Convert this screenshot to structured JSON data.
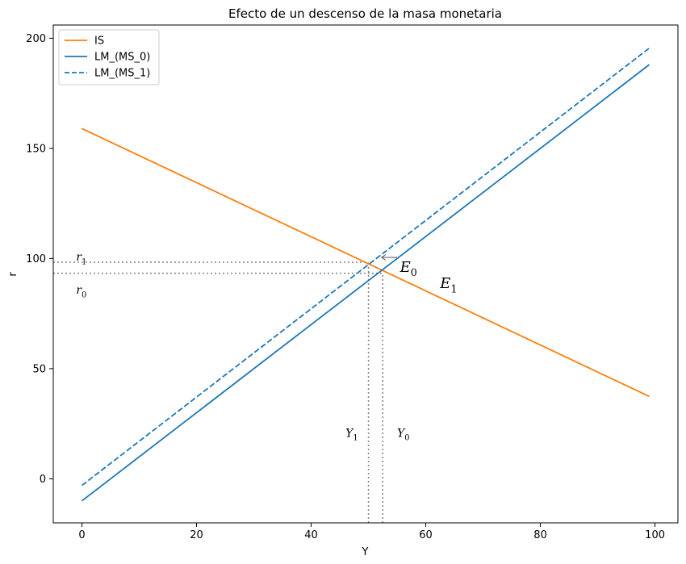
{
  "chart_data": {
    "type": "line",
    "title": "Efecto de un descenso de la masa monetaria",
    "xlabel": "Y",
    "ylabel": "r",
    "xlim": [
      -5,
      104
    ],
    "ylim": [
      -20,
      206
    ],
    "xticks": [
      0,
      20,
      40,
      60,
      80,
      100
    ],
    "yticks": [
      0,
      50,
      100,
      150,
      200
    ],
    "grid": false,
    "legend_position": "upper-left",
    "colors": {
      "IS": "#ff7f0e",
      "LM": "#1f77b4",
      "guide": "#808080"
    },
    "series": [
      {
        "name": "IS",
        "style": "solid",
        "color": "#ff7f0e",
        "x": [
          0,
          99
        ],
        "y": [
          159,
          37.4
        ]
      },
      {
        "name": "LM_(MS_0)",
        "style": "solid",
        "color": "#1f77b4",
        "x": [
          0,
          99
        ],
        "y": [
          -10,
          188
        ]
      },
      {
        "name": "LM_(MS_1)",
        "style": "dashed",
        "color": "#1f77b4",
        "x": [
          0,
          99
        ],
        "y": [
          -3,
          195.5
        ]
      }
    ],
    "guides": [
      {
        "id": "r1",
        "kind": "horizontal",
        "y": 98.3,
        "x_from": -5,
        "x_to": 50
      },
      {
        "id": "r0",
        "kind": "horizontal",
        "y": 93.3,
        "x_from": -5,
        "x_to": 52.5
      },
      {
        "id": "Y1",
        "kind": "vertical",
        "x": 50,
        "y_from": -20,
        "y_to": 98.3
      },
      {
        "id": "Y0",
        "kind": "vertical",
        "x": 52.5,
        "y_from": -20,
        "y_to": 93.3
      }
    ],
    "arrow": {
      "from": [
        55,
        100.5
      ],
      "to": [
        52.3,
        100.5
      ]
    },
    "annotations": [
      {
        "id": "r1",
        "base": "r",
        "sub": "1",
        "x": -1,
        "y": 99,
        "size": 14
      },
      {
        "id": "r0",
        "base": "r",
        "sub": "0",
        "x": -1,
        "y": 84,
        "size": 14
      },
      {
        "id": "E0",
        "base": "E",
        "sub": "0",
        "x": 55.5,
        "y": 94,
        "size": 18
      },
      {
        "id": "E1",
        "base": "E",
        "sub": "1",
        "x": 62.5,
        "y": 86.5,
        "size": 18
      },
      {
        "id": "Y1",
        "base": "Y",
        "sub": "1",
        "x": 46,
        "y": 19,
        "size": 14
      },
      {
        "id": "Y0",
        "base": "Y",
        "sub": "0",
        "x": 55,
        "y": 19,
        "size": 14
      }
    ]
  }
}
